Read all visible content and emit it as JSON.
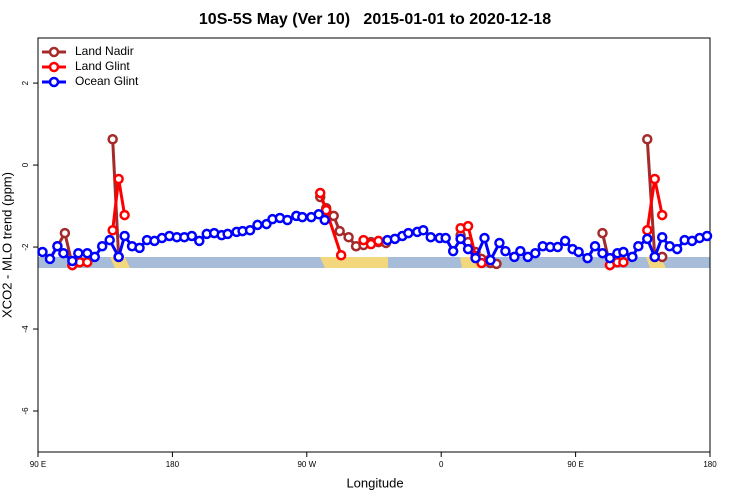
{
  "chart_data": {
    "type": "line",
    "title": "10S-5S May (Ver 10)   2015-01-01 to 2020-12-18",
    "xlabel": "Longitude",
    "ylabel": "XCO2 - MLO trend (ppm)",
    "xlim": [
      90,
      540
    ],
    "xticks": [
      {
        "value": 90,
        "label": "90 E"
      },
      {
        "value": 180,
        "label": "180"
      },
      {
        "value": 270,
        "label": "90 W"
      },
      {
        "value": 360,
        "label": "0"
      },
      {
        "value": 450,
        "label": "90 E"
      },
      {
        "value": 540,
        "label": "180"
      }
    ],
    "ylim": [
      -7.0,
      3.1
    ],
    "yticks": [
      2,
      0,
      -2,
      -4,
      -6
    ],
    "legend": "upper left",
    "series": [
      {
        "name": "Land Nadir",
        "color": "#a52a2a",
        "x": [
          103,
          108,
          113,
          118,
          130,
          140,
          144,
          200,
          279,
          283,
          288,
          292,
          298,
          303,
          308,
          313,
          318,
          323,
          340,
          373,
          378,
          383,
          387,
          393,
          397,
          430,
          468,
          473,
          490,
          498,
          503,
          508
        ],
        "values": [
          -1.98,
          -1.66,
          -2.44,
          -2.37,
          null,
          0.63,
          -2.24,
          null,
          -0.78,
          -1.05,
          -1.24,
          -1.61,
          -1.76,
          -1.98,
          -1.95,
          -1.88,
          -1.88,
          -1.9,
          null,
          -1.71,
          -1.88,
          -2.12,
          -2.29,
          -2.39,
          -2.41,
          null,
          -1.66,
          -2.44,
          null,
          0.63,
          -2.24,
          -2.24
        ]
      },
      {
        "name": "Land Glint",
        "color": "#ff0000",
        "x": [
          113,
          118,
          123,
          130,
          140,
          144,
          148,
          200,
          279,
          283,
          293,
          300,
          308,
          313,
          318,
          340,
          373,
          378,
          383,
          387,
          392,
          430,
          473,
          478,
          482,
          490,
          498,
          503,
          508
        ],
        "values": [
          -2.44,
          -2.37,
          -2.37,
          null,
          -1.59,
          -0.34,
          -1.22,
          null,
          -0.68,
          -1.1,
          -2.2,
          null,
          -1.83,
          -1.93,
          -1.85,
          null,
          -1.54,
          -1.49,
          -2.22,
          -2.39,
          -2.32,
          null,
          -2.44,
          -2.37,
          -2.37,
          null,
          -1.59,
          -0.34,
          -1.22
        ]
      },
      {
        "name": "Ocean Glint",
        "color": "#0000ff",
        "x": [
          93,
          98,
          103,
          107,
          113,
          117,
          123,
          128,
          133,
          138,
          144,
          148,
          153,
          158,
          163,
          168,
          173,
          178,
          183,
          188,
          193,
          198,
          203,
          208,
          213,
          217,
          223,
          227,
          232,
          237,
          243,
          247,
          252,
          257,
          263,
          267,
          273,
          278,
          282,
          303,
          324,
          329,
          334,
          338,
          344,
          348,
          353,
          359,
          363,
          368,
          373,
          378,
          383,
          389,
          393,
          399,
          403,
          409,
          413,
          418,
          423,
          428,
          433,
          438,
          443,
          448,
          452,
          458,
          463,
          468,
          473,
          478,
          482,
          488,
          492,
          498,
          503,
          508,
          513,
          518,
          523,
          528,
          533,
          538
        ],
        "values": [
          -2.12,
          -2.29,
          -1.98,
          -2.15,
          -2.34,
          -2.15,
          -2.15,
          -2.24,
          -1.98,
          -1.83,
          -2.24,
          -1.73,
          -1.98,
          -2.02,
          -1.83,
          -1.85,
          -1.78,
          -1.73,
          -1.76,
          -1.76,
          -1.73,
          -1.85,
          -1.68,
          -1.66,
          -1.71,
          -1.68,
          -1.63,
          -1.61,
          -1.59,
          -1.46,
          -1.44,
          -1.32,
          -1.29,
          -1.34,
          -1.24,
          -1.27,
          -1.27,
          -1.2,
          -1.34,
          null,
          -1.83,
          -1.8,
          -1.73,
          -1.66,
          -1.63,
          -1.59,
          -1.76,
          -1.78,
          -1.78,
          -2.1,
          -1.8,
          -2.05,
          -2.27,
          -1.78,
          -2.32,
          -1.9,
          -2.1,
          -2.24,
          -2.1,
          -2.24,
          -2.15,
          -1.98,
          -2.0,
          -2.0,
          -1.85,
          -2.05,
          -2.12,
          -2.27,
          -1.98,
          -2.15,
          -2.27,
          -2.15,
          -2.12,
          -2.24,
          -1.98,
          -1.8,
          -2.24,
          -1.76,
          -1.98,
          -2.05,
          -1.83,
          -1.85,
          -1.78,
          -1.73
        ]
      }
    ]
  }
}
